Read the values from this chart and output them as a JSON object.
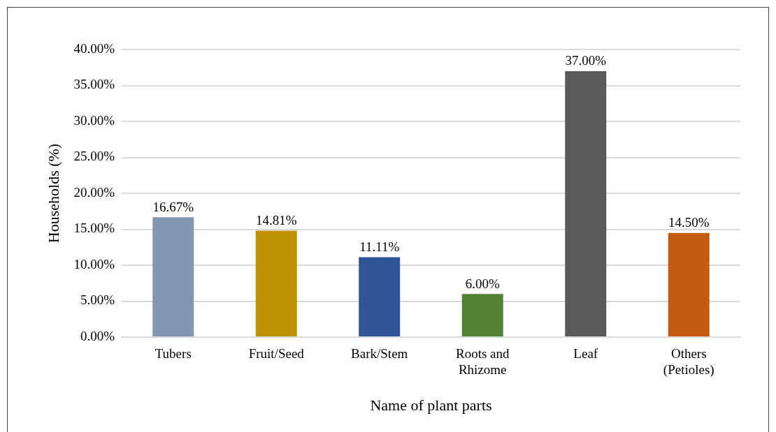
{
  "chart_data": {
    "type": "bar",
    "xlabel": "Name of plant parts",
    "ylabel": "Households (%)",
    "categories": [
      "Tubers",
      "Fruit/Seed",
      "Bark/Stem",
      "Roots and Rhizome",
      "Leaf",
      "Others (Petioles)"
    ],
    "values": [
      16.67,
      14.81,
      11.11,
      6.0,
      37.0,
      14.5
    ],
    "colors": [
      "#8497b0",
      "#bf9000",
      "#2f5597",
      "#548235",
      "#595959",
      "#c55a11"
    ],
    "value_labels": [
      "16.67%",
      "14.81%",
      "11.11%",
      "6.00%",
      "37.00%",
      "14.50%"
    ],
    "ylim": [
      0,
      40
    ],
    "yticks": [
      {
        "value": 0,
        "label": "0.00%"
      },
      {
        "value": 5,
        "label": "5.00%"
      },
      {
        "value": 10,
        "label": "10.00%"
      },
      {
        "value": 15,
        "label": "15.00%"
      },
      {
        "value": 20,
        "label": "20.00%"
      },
      {
        "value": 25,
        "label": "25.00%"
      },
      {
        "value": 30,
        "label": "30.00%"
      },
      {
        "value": 35,
        "label": "35.00%"
      },
      {
        "value": 40,
        "label": "40.00%"
      }
    ],
    "grid": "y"
  }
}
